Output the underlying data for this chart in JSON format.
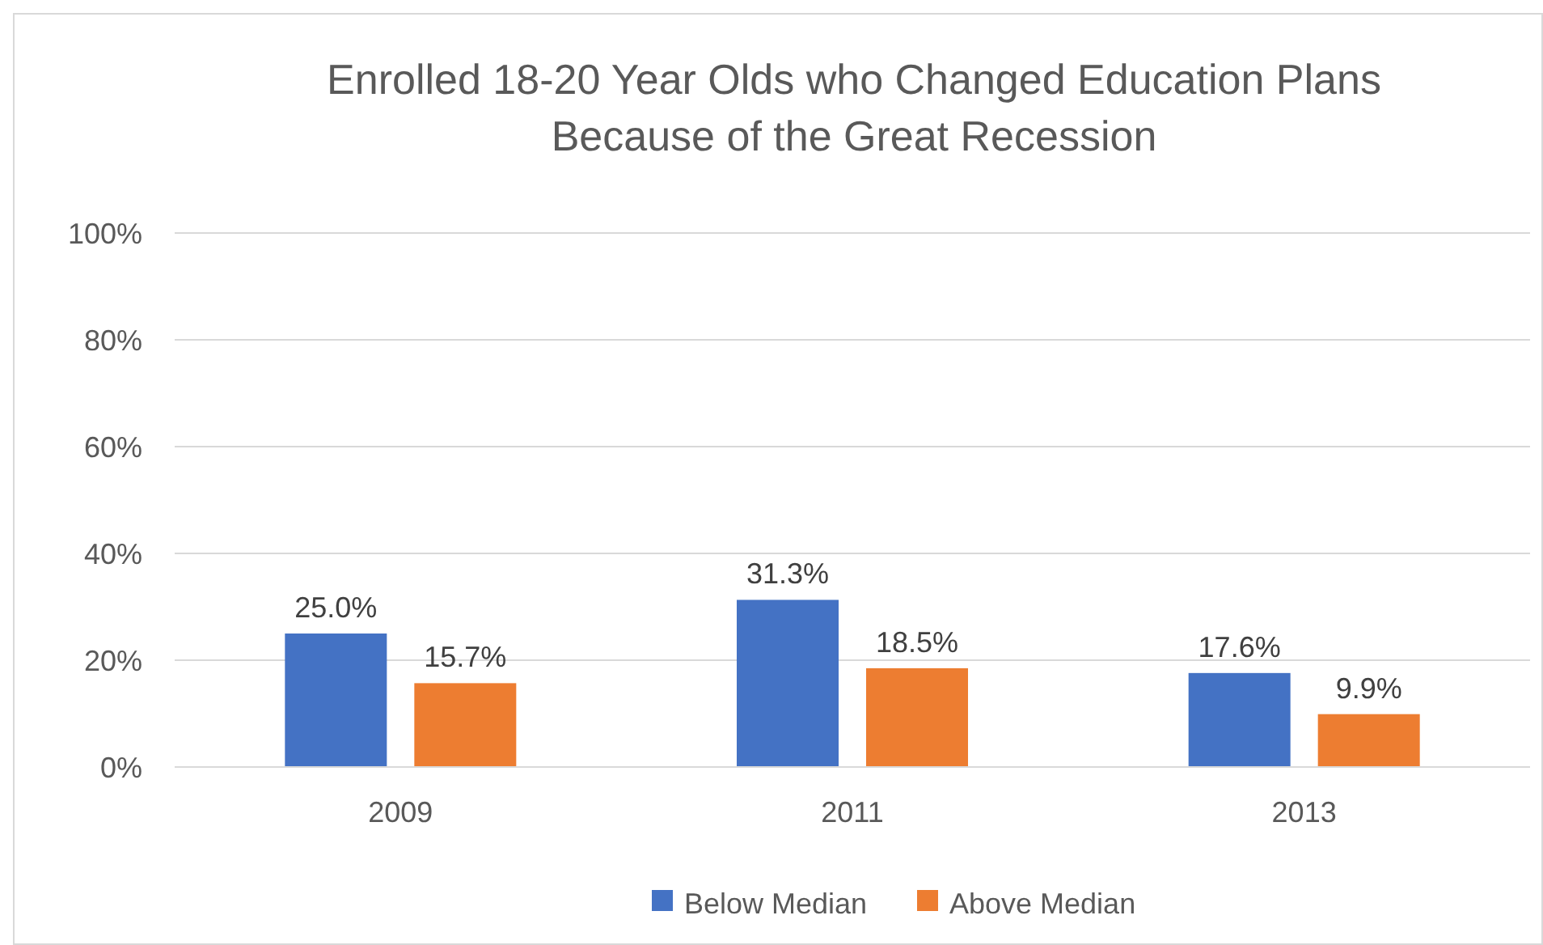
{
  "chart_data": {
    "type": "bar",
    "title": "Enrolled 18-20 Year Olds who Changed Education Plans Because of the Great Recession",
    "categories": [
      "2009",
      "2011",
      "2013"
    ],
    "series": [
      {
        "name": "Below Median",
        "color": "#4472c4",
        "values": [
          25.0,
          31.3,
          17.6
        ],
        "value_labels": [
          "25.0%",
          "31.3%",
          "17.6%"
        ]
      },
      {
        "name": "Above Median",
        "color": "#ed7d31",
        "values": [
          15.7,
          18.5,
          9.9
        ],
        "value_labels": [
          "15.7%",
          "18.5%",
          "9.9%"
        ]
      }
    ],
    "ylim": [
      0,
      100
    ],
    "yticks": [
      {
        "value": 0,
        "label": "0%"
      },
      {
        "value": 20,
        "label": "20%"
      },
      {
        "value": 40,
        "label": "40%"
      },
      {
        "value": 60,
        "label": "60%"
      },
      {
        "value": 80,
        "label": "80%"
      },
      {
        "value": 100,
        "label": "100%"
      }
    ],
    "grid": "y",
    "legend": "bottom"
  }
}
